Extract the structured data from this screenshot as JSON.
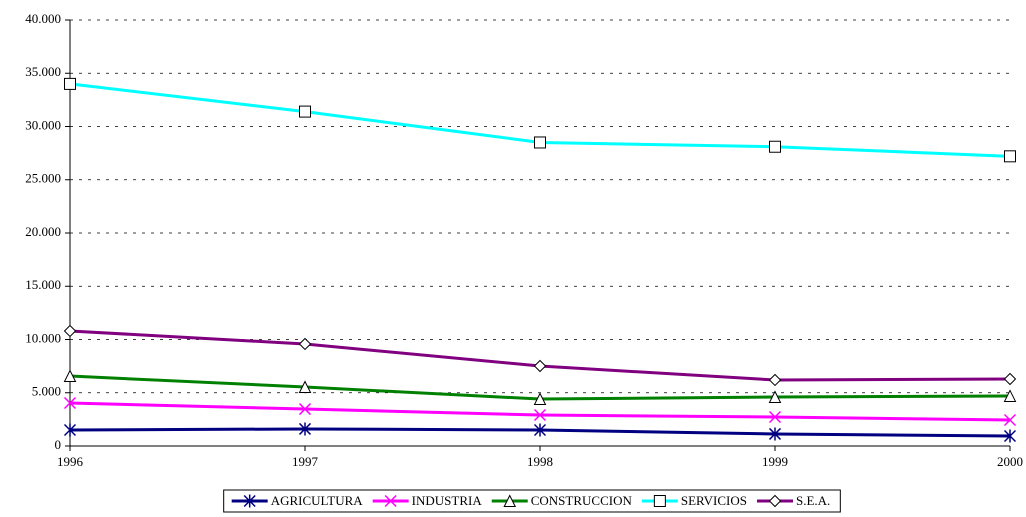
{
  "chart_data": {
    "type": "line",
    "x": [
      1996,
      1997,
      1998,
      1999,
      2000
    ],
    "xlim": [
      1996,
      2000
    ],
    "xticks": [
      1996,
      1997,
      1998,
      1999,
      2000
    ],
    "ylim": [
      0,
      40000
    ],
    "yticks": [
      0,
      {
        "value": 5000,
        "label": "5.000"
      },
      {
        "value": 10000,
        "label": "10.000"
      },
      {
        "value": 15000,
        "label": "15.000"
      },
      {
        "value": 20000,
        "label": "20.000"
      },
      {
        "value": 25000,
        "label": "25.000"
      },
      {
        "value": 30000,
        "label": "30.000"
      },
      {
        "value": 35000,
        "label": "35.000"
      },
      {
        "value": 40000,
        "label": "40.000"
      }
    ],
    "grid": true,
    "legend": "bottom",
    "series": [
      {
        "name": "AGRICULTURA",
        "color": "#000080",
        "marker": "star",
        "values": [
          1500,
          1600,
          1500,
          1130,
          940
        ]
      },
      {
        "name": "INDUSTRIA",
        "color": "#ff00ff",
        "marker": "x",
        "values": [
          4040,
          3470,
          2910,
          2720,
          2440
        ]
      },
      {
        "name": "CONSTRUCCION",
        "color": "#008000",
        "marker": "triangle",
        "values": [
          6570,
          5540,
          4410,
          4600,
          4700
        ]
      },
      {
        "name": "SERVICIOS",
        "color": "#00ffff",
        "marker": "square",
        "values": [
          34000,
          31400,
          28500,
          28100,
          27200
        ]
      },
      {
        "name": "S.E.A.",
        "color": "#800080",
        "marker": "diamond",
        "values": [
          10800,
          9580,
          7510,
          6200,
          6290
        ]
      }
    ]
  }
}
